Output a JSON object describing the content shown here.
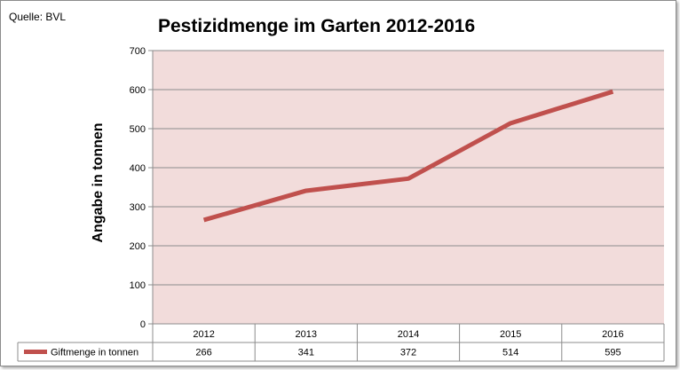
{
  "source_label": "Quelle: BVL",
  "chart_data": {
    "type": "line",
    "title": "Pestizidmenge im Garten 2012-2016",
    "ylabel": "Angabe in tonnen",
    "xlabel": "",
    "categories": [
      "2012",
      "2013",
      "2014",
      "2015",
      "2016"
    ],
    "series": [
      {
        "name": "Giftmenge in tonnen",
        "values": [
          266,
          341,
          372,
          514,
          595
        ],
        "color": "#c0504d"
      }
    ],
    "ylim": [
      0,
      700
    ],
    "yticks": [
      0,
      100,
      200,
      300,
      400,
      500,
      600,
      700
    ],
    "grid": true,
    "plot_background": "#f2dcdb",
    "data_table": true,
    "legend": "data-table"
  }
}
